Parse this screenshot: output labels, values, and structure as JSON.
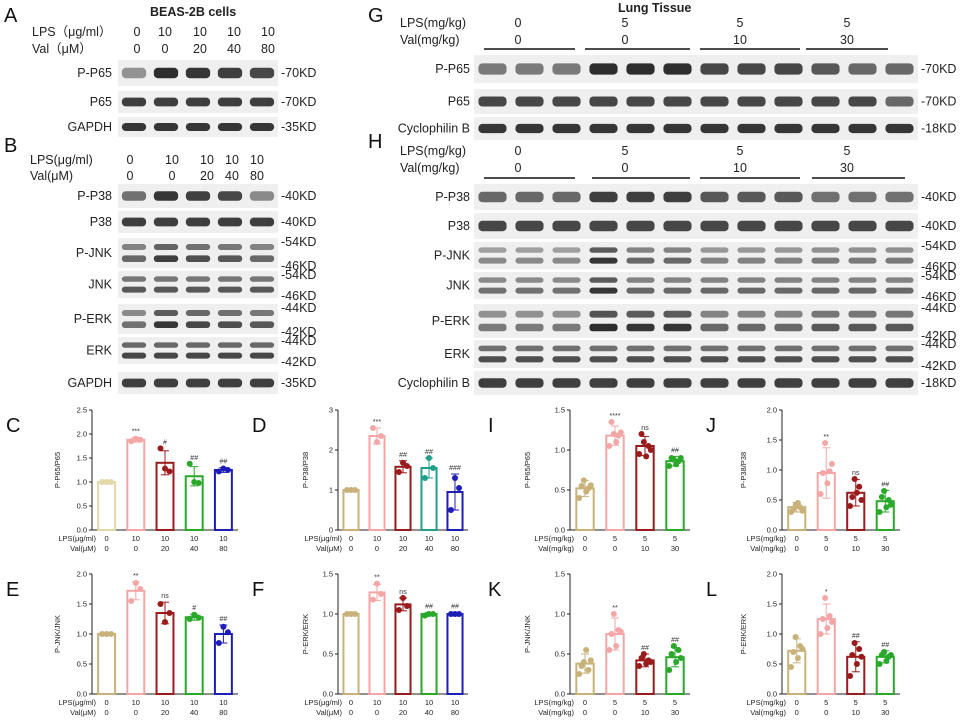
{
  "panel_labels": {
    "A": "A",
    "B": "B",
    "C": "C",
    "D": "D",
    "E": "E",
    "F": "F",
    "G": "G",
    "H": "H",
    "I": "I",
    "J": "J",
    "K": "K",
    "L": "L"
  },
  "titles": {
    "A": "BEAS-2B cells",
    "G": "Lung Tissue"
  },
  "treatments": {
    "A": {
      "row1": "LPS（μg/ml）",
      "row1_vals": [
        "0",
        "10",
        "10",
        "10",
        "10"
      ],
      "row2": "Val（μM）",
      "row2_vals": [
        "0",
        "0",
        "20",
        "40",
        "80"
      ]
    },
    "B": {
      "row1": "LPS(μg/ml)",
      "row1_vals": [
        "0",
        "10",
        "10",
        "10",
        "10"
      ],
      "row2": "Val(μM)",
      "row2_vals": [
        "0",
        "0",
        "20",
        "40",
        "80"
      ]
    },
    "G": {
      "row1": "LPS(mg/kg)",
      "row1_vals": [
        "0",
        "5",
        "5",
        "5"
      ],
      "row2": "Val(mg/kg)",
      "row2_vals": [
        "0",
        "0",
        "10",
        "30"
      ]
    },
    "H": {
      "row1": "LPS(mg/kg)",
      "row1_vals": [
        "0",
        "5",
        "5",
        "5"
      ],
      "row2": "Val(mg/kg)",
      "row2_vals": [
        "0",
        "0",
        "10",
        "30"
      ]
    }
  },
  "blots_left": [
    {
      "label": "P-P65",
      "kd": [
        "-70KD"
      ],
      "int": [
        0.35,
        0.95,
        0.9,
        0.85,
        0.8
      ]
    },
    {
      "label": "P65",
      "kd": [
        "-70KD"
      ],
      "int": [
        0.85,
        0.85,
        0.85,
        0.85,
        0.85
      ]
    },
    {
      "label": "GAPDH",
      "kd": [
        "-35KD"
      ],
      "int": [
        0.9,
        0.9,
        0.9,
        0.9,
        0.9
      ]
    },
    {
      "label": "P-P38",
      "kd": [
        "-40KD"
      ],
      "int": [
        0.55,
        0.9,
        0.85,
        0.8,
        0.4
      ]
    },
    {
      "label": "P38",
      "kd": [
        "-40KD"
      ],
      "int": [
        0.85,
        0.85,
        0.85,
        0.85,
        0.85
      ]
    },
    {
      "label": "P-JNK",
      "kd": [
        "-54KD",
        "-46KD"
      ],
      "int": [
        0.6,
        0.85,
        0.75,
        0.7,
        0.6
      ]
    },
    {
      "label": "JNK",
      "kd": [
        "-54KD",
        "-46KD"
      ],
      "int": [
        0.7,
        0.7,
        0.7,
        0.7,
        0.7
      ]
    },
    {
      "label": "P-ERK",
      "kd": [
        "-44KD",
        "-42KD"
      ],
      "int": [
        0.55,
        0.9,
        0.8,
        0.75,
        0.7
      ]
    },
    {
      "label": "ERK",
      "kd": [
        "-44KD",
        "-42KD"
      ],
      "int": [
        0.8,
        0.8,
        0.8,
        0.8,
        0.8
      ]
    },
    {
      "label": "GAPDH",
      "kd": [
        "-35KD"
      ],
      "int": [
        0.85,
        0.85,
        0.85,
        0.85,
        0.85
      ]
    }
  ],
  "blots_right": [
    {
      "label": "P-P65",
      "kd": [
        "-70KD"
      ],
      "int": [
        0.5,
        0.5,
        0.5,
        0.95,
        0.95,
        0.95,
        0.8,
        0.8,
        0.8,
        0.7,
        0.6,
        0.6
      ]
    },
    {
      "label": "P65",
      "kd": [
        "-70KD"
      ],
      "int": [
        0.8,
        0.8,
        0.8,
        0.8,
        0.8,
        0.8,
        0.8,
        0.8,
        0.8,
        0.8,
        0.8,
        0.6
      ]
    },
    {
      "label": "Cyclophilin B",
      "kd": [
        "-18KD"
      ],
      "int": [
        0.9,
        0.9,
        0.9,
        0.9,
        0.9,
        0.9,
        0.9,
        0.9,
        0.9,
        0.9,
        0.9,
        0.9
      ]
    },
    {
      "label": "P-P38",
      "kd": [
        "-40KD"
      ],
      "int": [
        0.6,
        0.6,
        0.6,
        0.85,
        0.85,
        0.85,
        0.7,
        0.7,
        0.7,
        0.55,
        0.55,
        0.55
      ]
    },
    {
      "label": "P38",
      "kd": [
        "-40KD"
      ],
      "int": [
        0.8,
        0.8,
        0.8,
        0.8,
        0.8,
        0.8,
        0.8,
        0.8,
        0.8,
        0.8,
        0.8,
        0.8
      ]
    },
    {
      "label": "P-JNK",
      "kd": [
        "-54KD",
        "-46KD"
      ],
      "int": [
        0.4,
        0.4,
        0.4,
        0.9,
        0.6,
        0.6,
        0.45,
        0.45,
        0.45,
        0.5,
        0.5,
        0.5
      ]
    },
    {
      "label": "JNK",
      "kd": [
        "-54KD",
        "-46KD"
      ],
      "int": [
        0.55,
        0.55,
        0.55,
        0.9,
        0.6,
        0.6,
        0.6,
        0.6,
        0.6,
        0.6,
        0.6,
        0.6
      ]
    },
    {
      "label": "P-ERK",
      "kd": [
        "-44KD",
        "-42KD"
      ],
      "int": [
        0.5,
        0.5,
        0.5,
        0.95,
        0.9,
        0.9,
        0.6,
        0.6,
        0.6,
        0.7,
        0.7,
        0.7
      ]
    },
    {
      "label": "ERK",
      "kd": [
        "-44KD",
        "-42KD"
      ],
      "int": [
        0.75,
        0.75,
        0.75,
        0.75,
        0.75,
        0.75,
        0.75,
        0.75,
        0.75,
        0.75,
        0.75,
        0.75
      ]
    },
    {
      "label": "Cyclophilin B",
      "kd": [
        "-18KD"
      ],
      "int": [
        0.85,
        0.85,
        0.85,
        0.85,
        0.85,
        0.85,
        0.85,
        0.85,
        0.85,
        0.85,
        0.85,
        0.85
      ]
    }
  ],
  "chart_data": [
    {
      "id": "C",
      "type": "bar",
      "ylabel": "P-P65/P65",
      "ylim": [
        0,
        2.5
      ],
      "yticks": [
        "0.0",
        "0.5",
        "1.0",
        "1.5",
        "2.0",
        "2.5"
      ],
      "row1_label": "LPS(μg/ml)",
      "row2_label": "Val(μM)",
      "row1": [
        "0",
        "10",
        "10",
        "10",
        "10"
      ],
      "row2": [
        "0",
        "0",
        "20",
        "40",
        "80"
      ],
      "values": [
        1.0,
        1.88,
        1.4,
        1.12,
        1.25
      ],
      "errors": [
        0,
        0.05,
        0.25,
        0.2,
        0.05
      ],
      "points": [
        [
          1,
          1,
          1
        ],
        [
          1.85,
          1.9,
          1.88
        ],
        [
          1.7,
          1.28,
          1.22
        ],
        [
          1.38,
          1.0,
          0.98
        ],
        [
          1.22,
          1.28,
          1.25
        ]
      ],
      "sig": [
        "",
        "***",
        "#",
        "##",
        "##"
      ],
      "colors": [
        "#e3d9a6",
        "#f4a6a6",
        "#9a1b1b",
        "#2aa82a",
        "#1d1db8"
      ]
    },
    {
      "id": "D",
      "type": "bar",
      "ylabel": "P-P38/P38",
      "ylim": [
        0,
        3
      ],
      "yticks": [
        "0",
        "1",
        "2",
        "3"
      ],
      "row1_label": "LPS(μg/ml)",
      "row2_label": "Val(μM)",
      "row1": [
        "0",
        "10",
        "10",
        "10",
        "10"
      ],
      "row2": [
        "0",
        "0",
        "20",
        "40",
        "80"
      ],
      "values": [
        1.0,
        2.35,
        1.58,
        1.55,
        0.95
      ],
      "errors": [
        0,
        0.2,
        0.15,
        0.25,
        0.45
      ],
      "points": [
        [
          1,
          1,
          1
        ],
        [
          2.55,
          2.2,
          2.35
        ],
        [
          1.45,
          1.68,
          1.6
        ],
        [
          1.3,
          1.8,
          1.55
        ],
        [
          0.5,
          1.3,
          1.05
        ]
      ],
      "sig": [
        "",
        "***",
        "##",
        "##",
        "###"
      ],
      "colors": [
        "#c8b27a",
        "#f4a6a6",
        "#9a1b1b",
        "#20a08a",
        "#1d1db8"
      ]
    },
    {
      "id": "E",
      "type": "bar",
      "ylabel": "P-JNK/JNK",
      "ylim": [
        0,
        2.0
      ],
      "yticks": [
        "0.0",
        "0.5",
        "1.0",
        "1.5",
        "2.0"
      ],
      "row1_label": "LPS(μg/ml)",
      "row2_label": "Val(μM)",
      "row1": [
        "0",
        "10",
        "10",
        "10",
        "10"
      ],
      "row2": [
        "0",
        "0",
        "20",
        "40",
        "80"
      ],
      "values": [
        1.0,
        1.72,
        1.35,
        1.28,
        1.0
      ],
      "errors": [
        0,
        0.15,
        0.18,
        0.05,
        0.15
      ],
      "points": [
        [
          1,
          1,
          1
        ],
        [
          1.55,
          1.85,
          1.75
        ],
        [
          1.5,
          1.2,
          1.35
        ],
        [
          1.25,
          1.32,
          1.27
        ],
        [
          0.85,
          1.12,
          1.03
        ]
      ],
      "sig": [
        "",
        "**",
        "ns",
        "#",
        "##"
      ],
      "colors": [
        "#c8b27a",
        "#f4a6a6",
        "#9a1b1b",
        "#2aa82a",
        "#1d1db8"
      ]
    },
    {
      "id": "F",
      "type": "bar",
      "ylabel": "P-ERK/ERK",
      "ylim": [
        0,
        1.5
      ],
      "yticks": [
        "0.0",
        "0.5",
        "1.0",
        "1.5"
      ],
      "row1_label": "LPS(μg/ml)",
      "row2_label": "Val(μM)",
      "row1": [
        "0",
        "10",
        "10",
        "10",
        "10"
      ],
      "row2": [
        "0",
        "0",
        "20",
        "40",
        "80"
      ],
      "values": [
        1.0,
        1.27,
        1.12,
        1.0,
        1.0
      ],
      "errors": [
        0,
        0.1,
        0.08,
        0.02,
        0.02
      ],
      "points": [
        [
          1,
          1,
          1
        ],
        [
          1.18,
          1.38,
          1.25
        ],
        [
          1.05,
          1.2,
          1.1
        ],
        [
          0.98,
          1.0,
          1.0
        ],
        [
          1.0,
          1.0,
          1.0
        ]
      ],
      "sig": [
        "",
        "**",
        "ns",
        "##",
        "##"
      ],
      "colors": [
        "#c8b27a",
        "#f4a6a6",
        "#9a1b1b",
        "#2aa82a",
        "#1d1db8"
      ]
    },
    {
      "id": "I",
      "type": "bar",
      "ylabel": "P-P65/P65",
      "ylim": [
        0,
        1.5
      ],
      "yticks": [
        "0.0",
        "0.5",
        "1.0",
        "1.5"
      ],
      "row1_label": "LPS(mg/kg)",
      "row2_label": "Val(mg/kg)",
      "row1": [
        "0",
        "5",
        "5",
        "5"
      ],
      "row2": [
        "0",
        "0",
        "10",
        "30"
      ],
      "values": [
        0.52,
        1.18,
        1.05,
        0.86
      ],
      "errors": [
        0.1,
        0.12,
        0.12,
        0.06
      ],
      "points": [
        [
          0.4,
          0.55,
          0.62,
          0.48,
          0.52,
          0.56
        ],
        [
          1.05,
          1.35,
          1.2,
          1.1,
          1.18,
          1.22
        ],
        [
          0.95,
          1.2,
          1.1,
          0.92,
          1.05,
          1.0
        ],
        [
          0.8,
          0.9,
          0.88,
          0.82,
          0.86,
          0.9
        ]
      ],
      "sig": [
        "",
        "****",
        "ns",
        "##"
      ],
      "colors": [
        "#c8b27a",
        "#f4a6a6",
        "#9a1b1b",
        "#2aa82a"
      ]
    },
    {
      "id": "J",
      "type": "bar",
      "ylabel": "P-P38/P38",
      "ylim": [
        0,
        2.0
      ],
      "yticks": [
        "0.0",
        "0.5",
        "1.0",
        "1.5",
        "2.0"
      ],
      "row1_label": "LPS(mg/kg)",
      "row2_label": "Val(mg/kg)",
      "row1": [
        "0",
        "5",
        "5",
        "5"
      ],
      "row2": [
        "0",
        "0",
        "10",
        "30"
      ],
      "values": [
        0.38,
        0.95,
        0.62,
        0.48
      ],
      "errors": [
        0.08,
        0.42,
        0.22,
        0.18
      ],
      "points": [
        [
          0.3,
          0.35,
          0.42,
          0.45,
          0.38,
          0.32
        ],
        [
          0.6,
          0.95,
          1.45,
          0.78,
          0.98,
          1.1
        ],
        [
          0.4,
          0.55,
          0.85,
          0.62,
          0.72,
          0.5
        ],
        [
          0.3,
          0.55,
          0.65,
          0.38,
          0.5,
          0.42
        ]
      ],
      "sig": [
        "",
        "**",
        "ns",
        "##"
      ],
      "colors": [
        "#c8b27a",
        "#f4a6a6",
        "#9a1b1b",
        "#2aa82a"
      ]
    },
    {
      "id": "K",
      "type": "bar",
      "ylabel": "P-JNK/JNK",
      "ylim": [
        0,
        1.5
      ],
      "yticks": [
        "0.0",
        "0.5",
        "1.0",
        "1.5"
      ],
      "row1_label": "LPS(mg/kg)",
      "row2_label": "Val(mg/kg)",
      "row1": [
        "0",
        "5",
        "5",
        "5"
      ],
      "row2": [
        "0",
        "0",
        "10",
        "30"
      ],
      "values": [
        0.38,
        0.75,
        0.42,
        0.46
      ],
      "errors": [
        0.12,
        0.2,
        0.08,
        0.12
      ],
      "points": [
        [
          0.25,
          0.35,
          0.4,
          0.55,
          0.3,
          0.42
        ],
        [
          0.55,
          0.75,
          1.0,
          0.6,
          0.8,
          0.78
        ],
        [
          0.35,
          0.45,
          0.5,
          0.38,
          0.42,
          0.4
        ],
        [
          0.3,
          0.5,
          0.6,
          0.4,
          0.55,
          0.45
        ]
      ],
      "sig": [
        "",
        "**",
        "##",
        "##"
      ],
      "colors": [
        "#c8b27a",
        "#f4a6a6",
        "#9a1b1b",
        "#2aa82a"
      ]
    },
    {
      "id": "L",
      "type": "bar",
      "ylabel": "P-ERK/ERK",
      "ylim": [
        0,
        2.0
      ],
      "yticks": [
        "0.0",
        "0.5",
        "1.0",
        "1.5",
        "2.0"
      ],
      "row1_label": "LPS(mg/kg)",
      "row2_label": "Val(mg/kg)",
      "row1": [
        "0",
        "5",
        "5",
        "5"
      ],
      "row2": [
        "0",
        "0",
        "10",
        "30"
      ],
      "values": [
        0.72,
        1.25,
        0.62,
        0.62
      ],
      "errors": [
        0.2,
        0.25,
        0.25,
        0.1
      ],
      "points": [
        [
          0.45,
          0.7,
          0.95,
          0.6,
          0.8,
          0.75
        ],
        [
          1.0,
          1.25,
          1.6,
          1.1,
          1.3,
          1.2
        ],
        [
          0.3,
          0.65,
          0.85,
          0.5,
          0.75,
          0.62
        ],
        [
          0.5,
          0.65,
          0.7,
          0.55,
          0.62,
          0.65
        ]
      ],
      "sig": [
        "",
        "*",
        "##",
        "##"
      ],
      "colors": [
        "#c8b27a",
        "#f4a6a6",
        "#9a1b1b",
        "#2aa82a"
      ]
    }
  ]
}
